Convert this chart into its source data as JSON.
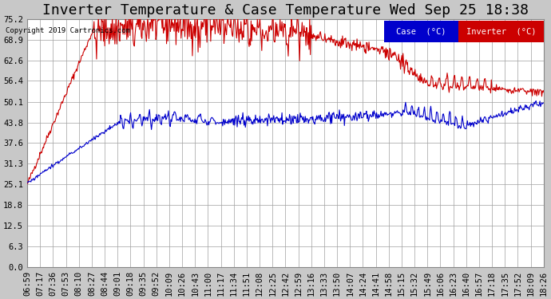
{
  "title": "Inverter Temperature & Case Temperature Wed Sep 25 18:38",
  "copyright": "Copyright 2019 Cartronics.com",
  "bg_color": "#c8c8c8",
  "plot_bg_color": "#ffffff",
  "grid_color": "#a0a0a0",
  "ylim": [
    0.0,
    75.2
  ],
  "yticks": [
    0.0,
    6.3,
    12.5,
    18.8,
    25.1,
    31.3,
    37.6,
    43.8,
    50.1,
    56.4,
    62.6,
    68.9,
    75.2
  ],
  "case_color": "#0000cc",
  "inverter_color": "#cc0000",
  "legend_case_bg": "#0000cc",
  "legend_inverter_bg": "#cc0000",
  "legend_text_color": "#ffffff",
  "title_fontsize": 13,
  "tick_fontsize": 7.5,
  "xtick_labels": [
    "06:59",
    "07:17",
    "07:36",
    "07:53",
    "08:10",
    "08:27",
    "08:44",
    "09:01",
    "09:18",
    "09:35",
    "09:52",
    "10:09",
    "10:26",
    "10:43",
    "11:00",
    "11:17",
    "11:34",
    "11:51",
    "12:08",
    "12:25",
    "12:42",
    "12:59",
    "13:16",
    "13:33",
    "13:50",
    "14:07",
    "14:24",
    "14:41",
    "14:58",
    "15:15",
    "15:32",
    "15:49",
    "16:06",
    "16:23",
    "16:40",
    "16:57",
    "17:18",
    "17:35",
    "17:52",
    "18:09",
    "18:26"
  ]
}
